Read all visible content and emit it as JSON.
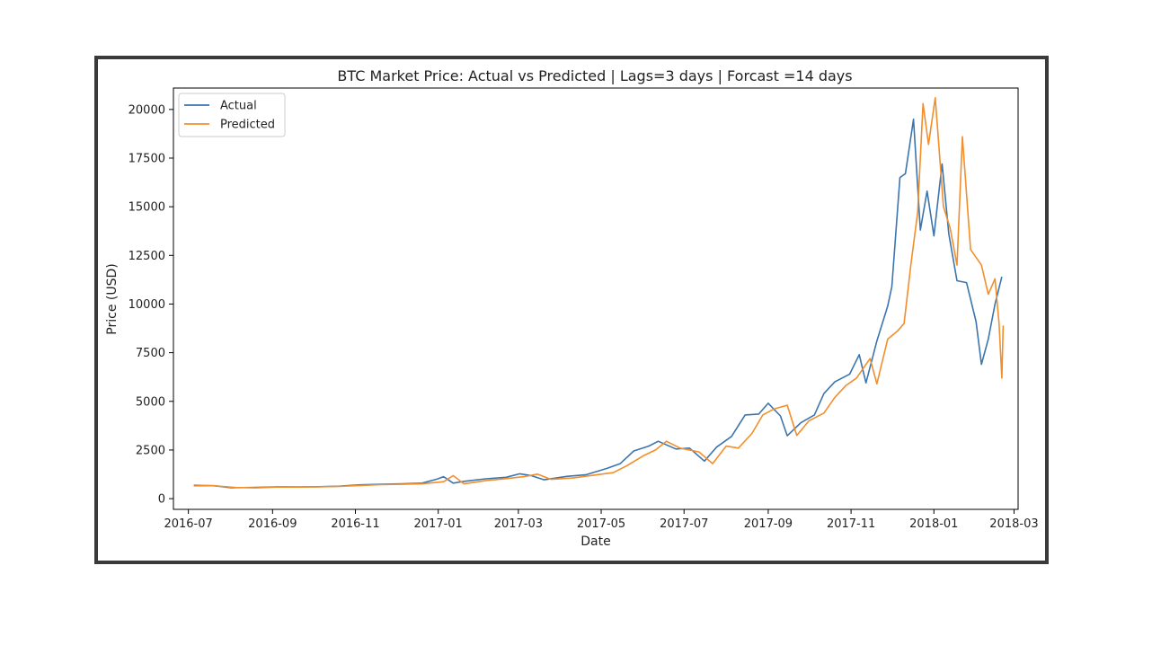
{
  "chart_data": {
    "type": "line",
    "title": "BTC Market Price: Actual vs Predicted | Lags=3 days | Forcast =14 days",
    "xlabel": "Date",
    "ylabel": "Price (USD)",
    "xlim": [
      "2016-06-20",
      "2018-03-04"
    ],
    "ylim": [
      -550,
      21100
    ],
    "x_ticks": [
      "2016-07",
      "2016-09",
      "2016-11",
      "2017-01",
      "2017-03",
      "2017-05",
      "2017-07",
      "2017-09",
      "2017-11",
      "2018-01",
      "2018-03"
    ],
    "y_ticks": [
      0,
      2500,
      5000,
      7500,
      10000,
      12500,
      15000,
      17500,
      20000
    ],
    "grid": false,
    "legend": "upper-left",
    "series": [
      {
        "name": "Actual",
        "color": "#3b75af",
        "points": [
          [
            "2016-07-05",
            670
          ],
          [
            "2016-07-20",
            665
          ],
          [
            "2016-08-02",
            560
          ],
          [
            "2016-08-20",
            580
          ],
          [
            "2016-09-05",
            610
          ],
          [
            "2016-09-20",
            605
          ],
          [
            "2016-10-05",
            615
          ],
          [
            "2016-10-20",
            640
          ],
          [
            "2016-11-05",
            710
          ],
          [
            "2016-11-20",
            740
          ],
          [
            "2016-12-05",
            765
          ],
          [
            "2016-12-20",
            800
          ],
          [
            "2016-12-31",
            1000
          ],
          [
            "2017-01-05",
            1130
          ],
          [
            "2017-01-12",
            800
          ],
          [
            "2017-01-20",
            890
          ],
          [
            "2017-02-05",
            1020
          ],
          [
            "2017-02-20",
            1100
          ],
          [
            "2017-03-02",
            1280
          ],
          [
            "2017-03-10",
            1190
          ],
          [
            "2017-03-20",
            970
          ],
          [
            "2017-04-05",
            1140
          ],
          [
            "2017-04-20",
            1230
          ],
          [
            "2017-05-05",
            1550
          ],
          [
            "2017-05-15",
            1800
          ],
          [
            "2017-05-25",
            2450
          ],
          [
            "2017-06-05",
            2700
          ],
          [
            "2017-06-12",
            2950
          ],
          [
            "2017-06-25",
            2550
          ],
          [
            "2017-07-05",
            2600
          ],
          [
            "2017-07-16",
            1930
          ],
          [
            "2017-07-25",
            2650
          ],
          [
            "2017-08-05",
            3200
          ],
          [
            "2017-08-15",
            4300
          ],
          [
            "2017-08-25",
            4350
          ],
          [
            "2017-09-01",
            4900
          ],
          [
            "2017-09-10",
            4250
          ],
          [
            "2017-09-15",
            3230
          ],
          [
            "2017-09-25",
            3900
          ],
          [
            "2017-10-05",
            4300
          ],
          [
            "2017-10-12",
            5400
          ],
          [
            "2017-10-20",
            6000
          ],
          [
            "2017-10-31",
            6400
          ],
          [
            "2017-11-07",
            7400
          ],
          [
            "2017-11-12",
            5950
          ],
          [
            "2017-11-20",
            8100
          ],
          [
            "2017-11-28",
            9900
          ],
          [
            "2017-12-01",
            10900
          ],
          [
            "2017-12-07",
            16500
          ],
          [
            "2017-12-11",
            16700
          ],
          [
            "2017-12-17",
            19500
          ],
          [
            "2017-12-22",
            13800
          ],
          [
            "2017-12-27",
            15800
          ],
          [
            "2018-01-01",
            13500
          ],
          [
            "2018-01-07",
            17200
          ],
          [
            "2018-01-12",
            13600
          ],
          [
            "2018-01-18",
            11200
          ],
          [
            "2018-01-25",
            11100
          ],
          [
            "2018-02-01",
            9100
          ],
          [
            "2018-02-05",
            6900
          ],
          [
            "2018-02-10",
            8200
          ],
          [
            "2018-02-15",
            10000
          ],
          [
            "2018-02-20",
            11400
          ]
        ]
      },
      {
        "name": "Predicted",
        "color": "#f28e2b",
        "points": [
          [
            "2016-07-05",
            700
          ],
          [
            "2016-07-20",
            660
          ],
          [
            "2016-08-05",
            570
          ],
          [
            "2016-08-20",
            555
          ],
          [
            "2016-09-05",
            600
          ],
          [
            "2016-09-20",
            595
          ],
          [
            "2016-10-05",
            610
          ],
          [
            "2016-10-20",
            630
          ],
          [
            "2016-11-05",
            680
          ],
          [
            "2016-11-20",
            720
          ],
          [
            "2016-12-05",
            740
          ],
          [
            "2016-12-20",
            760
          ],
          [
            "2017-01-05",
            870
          ],
          [
            "2017-01-12",
            1180
          ],
          [
            "2017-01-20",
            760
          ],
          [
            "2017-02-05",
            930
          ],
          [
            "2017-02-20",
            1030
          ],
          [
            "2017-03-05",
            1130
          ],
          [
            "2017-03-15",
            1260
          ],
          [
            "2017-03-25",
            990
          ],
          [
            "2017-04-10",
            1060
          ],
          [
            "2017-04-25",
            1200
          ],
          [
            "2017-05-10",
            1340
          ],
          [
            "2017-05-20",
            1700
          ],
          [
            "2017-06-01",
            2200
          ],
          [
            "2017-06-10",
            2500
          ],
          [
            "2017-06-18",
            2950
          ],
          [
            "2017-06-28",
            2600
          ],
          [
            "2017-07-12",
            2400
          ],
          [
            "2017-07-22",
            1800
          ],
          [
            "2017-08-01",
            2700
          ],
          [
            "2017-08-10",
            2600
          ],
          [
            "2017-08-20",
            3350
          ],
          [
            "2017-08-28",
            4300
          ],
          [
            "2017-09-05",
            4600
          ],
          [
            "2017-09-15",
            4800
          ],
          [
            "2017-09-22",
            3250
          ],
          [
            "2017-10-01",
            4000
          ],
          [
            "2017-10-12",
            4400
          ],
          [
            "2017-10-20",
            5200
          ],
          [
            "2017-10-28",
            5800
          ],
          [
            "2017-11-05",
            6200
          ],
          [
            "2017-11-15",
            7200
          ],
          [
            "2017-11-20",
            5900
          ],
          [
            "2017-11-28",
            8200
          ],
          [
            "2017-12-05",
            8600
          ],
          [
            "2017-12-10",
            9000
          ],
          [
            "2017-12-15",
            12000
          ],
          [
            "2017-12-20",
            14700
          ],
          [
            "2017-12-24",
            20300
          ],
          [
            "2017-12-28",
            18200
          ],
          [
            "2018-01-02",
            20600
          ],
          [
            "2018-01-08",
            15000
          ],
          [
            "2018-01-13",
            13900
          ],
          [
            "2018-01-18",
            12000
          ],
          [
            "2018-01-22",
            18600
          ],
          [
            "2018-01-28",
            12800
          ],
          [
            "2018-02-05",
            12000
          ],
          [
            "2018-02-10",
            10500
          ],
          [
            "2018-02-15",
            11300
          ],
          [
            "2018-02-18",
            9000
          ],
          [
            "2018-02-20",
            6200
          ],
          [
            "2018-02-21",
            8900
          ]
        ]
      }
    ]
  }
}
